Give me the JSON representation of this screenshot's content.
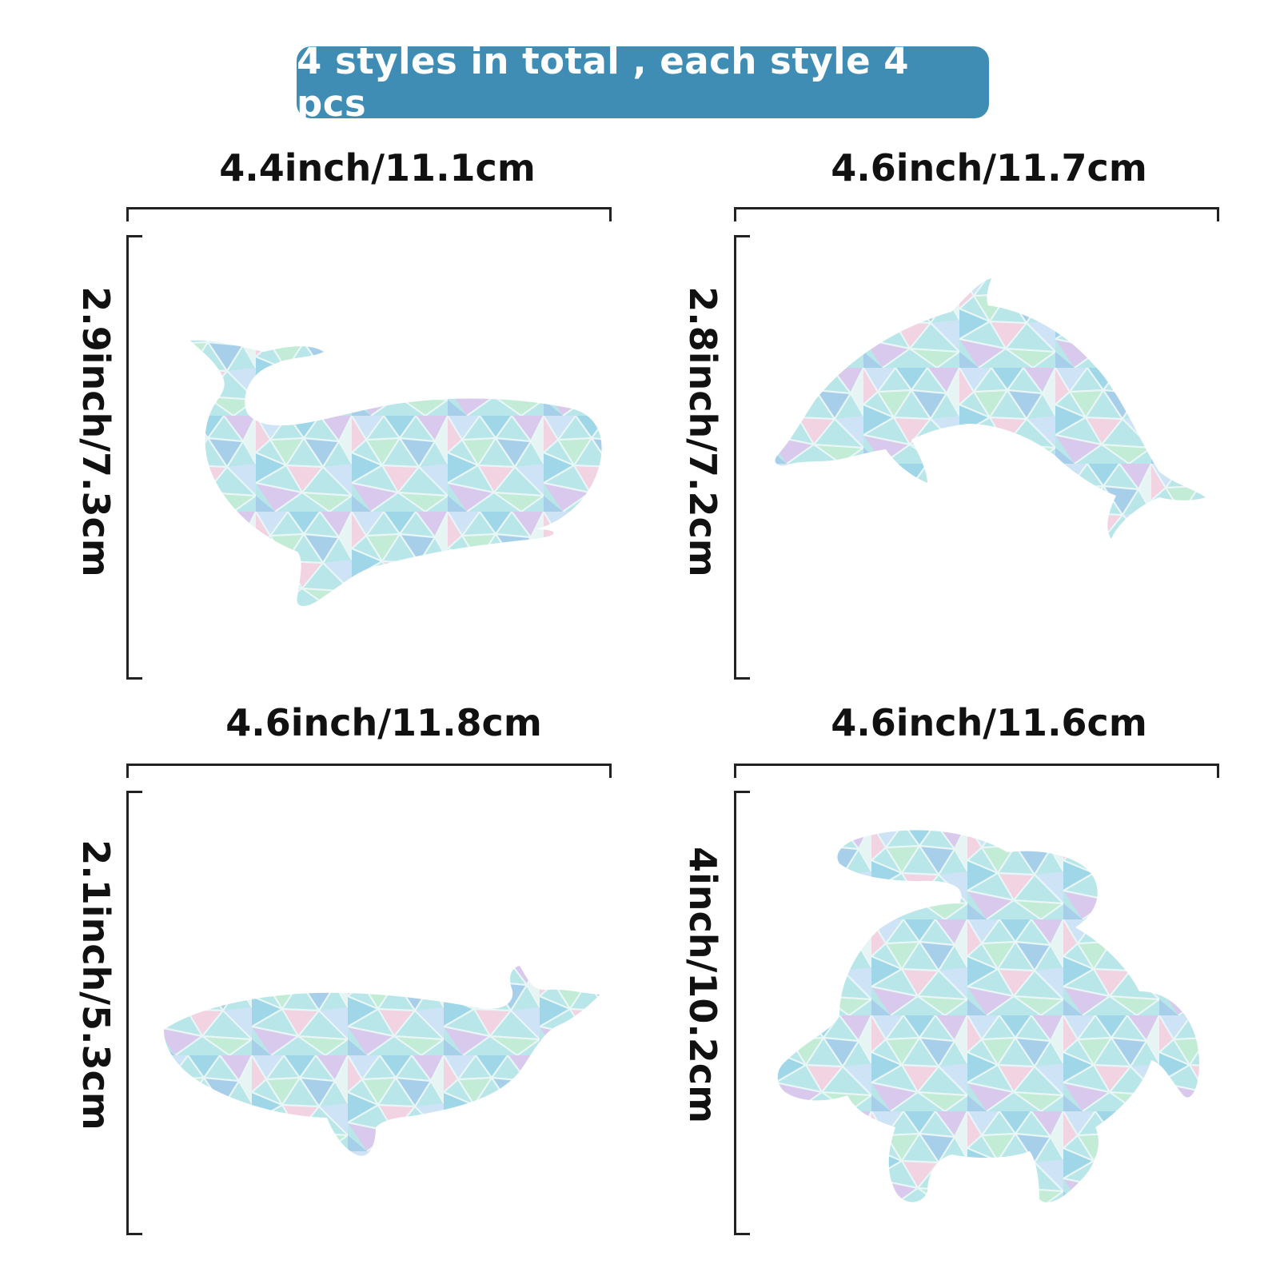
{
  "banner": {
    "text": "4 styles in total , each style 4 pcs",
    "color": "#3f8db5"
  },
  "items": [
    {
      "shape": "sperm-whale-sticker",
      "width_label": "4.4inch/11.1cm",
      "height_label": "2.9inch/7.3cm"
    },
    {
      "shape": "dolphin-sticker",
      "width_label": "4.6inch/11.7cm",
      "height_label": "2.8inch/7.2cm"
    },
    {
      "shape": "whale-sticker",
      "width_label": "4.6inch/11.8cm",
      "height_label": "2.1inch/5.3cm"
    },
    {
      "shape": "sea-turtle-sticker",
      "width_label": "4.6inch/11.6cm",
      "height_label": "4inch/10.2cm"
    }
  ],
  "colors": {
    "mosaic_base": "#b9e6e8",
    "mosaic_lines": "#e8f6f6",
    "mosaic_tints": [
      "#cfe3f7",
      "#9fd6e8",
      "#d9c9ec",
      "#f1d3e2",
      "#c2ecd5",
      "#a8cfe9",
      "#e6f4f4"
    ]
  }
}
